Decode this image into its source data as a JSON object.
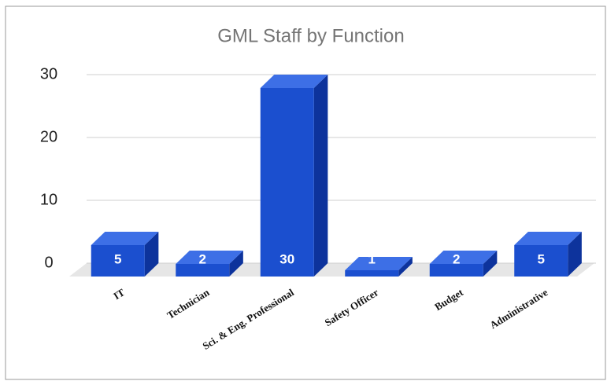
{
  "chart_data": {
    "type": "bar3d",
    "title": "GML Staff by Function",
    "categories": [
      "IT",
      "Technician",
      "Sci. & Eng. Professional",
      "Safety Officer",
      "Budget",
      "Administrative"
    ],
    "values": [
      5,
      2,
      30,
      1,
      2,
      5
    ],
    "color": "#1b4fcf",
    "ylim": [
      0,
      30
    ],
    "yticks": [
      0,
      10,
      20,
      30
    ],
    "grid": true
  }
}
